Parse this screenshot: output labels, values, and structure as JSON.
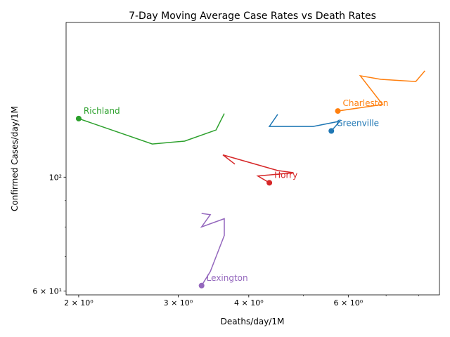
{
  "chart_data": {
    "type": "line",
    "title": "7-Day Moving Average Case Rates vs Death Rates",
    "xlabel": "Deaths/day/1M",
    "ylabel": "Confirmed Cases/day/1M",
    "x_scale": "log",
    "y_scale": "log",
    "xlim": [
      1.9,
      8.7
    ],
    "ylim": [
      59,
      200
    ],
    "grid": false,
    "x_major_ticks": [
      {
        "value": 2,
        "label": "2 × 10⁰"
      },
      {
        "value": 3,
        "label": "3 × 10⁰"
      },
      {
        "value": 4,
        "label": "4 × 10⁰"
      },
      {
        "value": 6,
        "label": "6 × 10⁰"
      }
    ],
    "x_minor_ticks": [
      5,
      7,
      8
    ],
    "y_major_ticks": [
      {
        "value": 60,
        "label": "6 × 10¹"
      },
      {
        "value": 100,
        "label": "10²"
      }
    ],
    "y_minor_ticks": [
      70,
      80,
      90
    ],
    "series": [
      {
        "name": "Richland",
        "color": "#2ca02c",
        "points": [
          [
            2.0,
            130
          ],
          [
            2.7,
            116
          ],
          [
            3.08,
            117.5
          ],
          [
            3.5,
            123.5
          ],
          [
            3.62,
            133
          ]
        ]
      },
      {
        "name": "Charleston",
        "color": "#ff7f0e",
        "points": [
          [
            5.75,
            134.5
          ],
          [
            6.9,
            138.5
          ],
          [
            6.3,
            157.5
          ],
          [
            6.85,
            155
          ],
          [
            7.9,
            153.5
          ],
          [
            8.2,
            161
          ]
        ]
      },
      {
        "name": "Greenville",
        "color": "#1f77b4",
        "points": [
          [
            5.6,
            123
          ],
          [
            5.8,
            128.5
          ],
          [
            5.2,
            125.5
          ],
          [
            4.35,
            125.5
          ],
          [
            4.5,
            132.5
          ]
        ]
      },
      {
        "name": "Horry",
        "color": "#d62728",
        "points": [
          [
            4.35,
            97.5
          ],
          [
            4.15,
            100.5
          ],
          [
            4.8,
            102
          ],
          [
            4.5,
            103
          ],
          [
            3.6,
            110.5
          ],
          [
            3.78,
            106
          ]
        ]
      },
      {
        "name": "Lexington",
        "color": "#9467bd",
        "points": [
          [
            3.3,
            61.5
          ],
          [
            3.42,
            65.5
          ],
          [
            3.62,
            77
          ],
          [
            3.62,
            83
          ],
          [
            3.3,
            80
          ],
          [
            3.42,
            84.5
          ],
          [
            3.3,
            85
          ]
        ]
      }
    ]
  }
}
